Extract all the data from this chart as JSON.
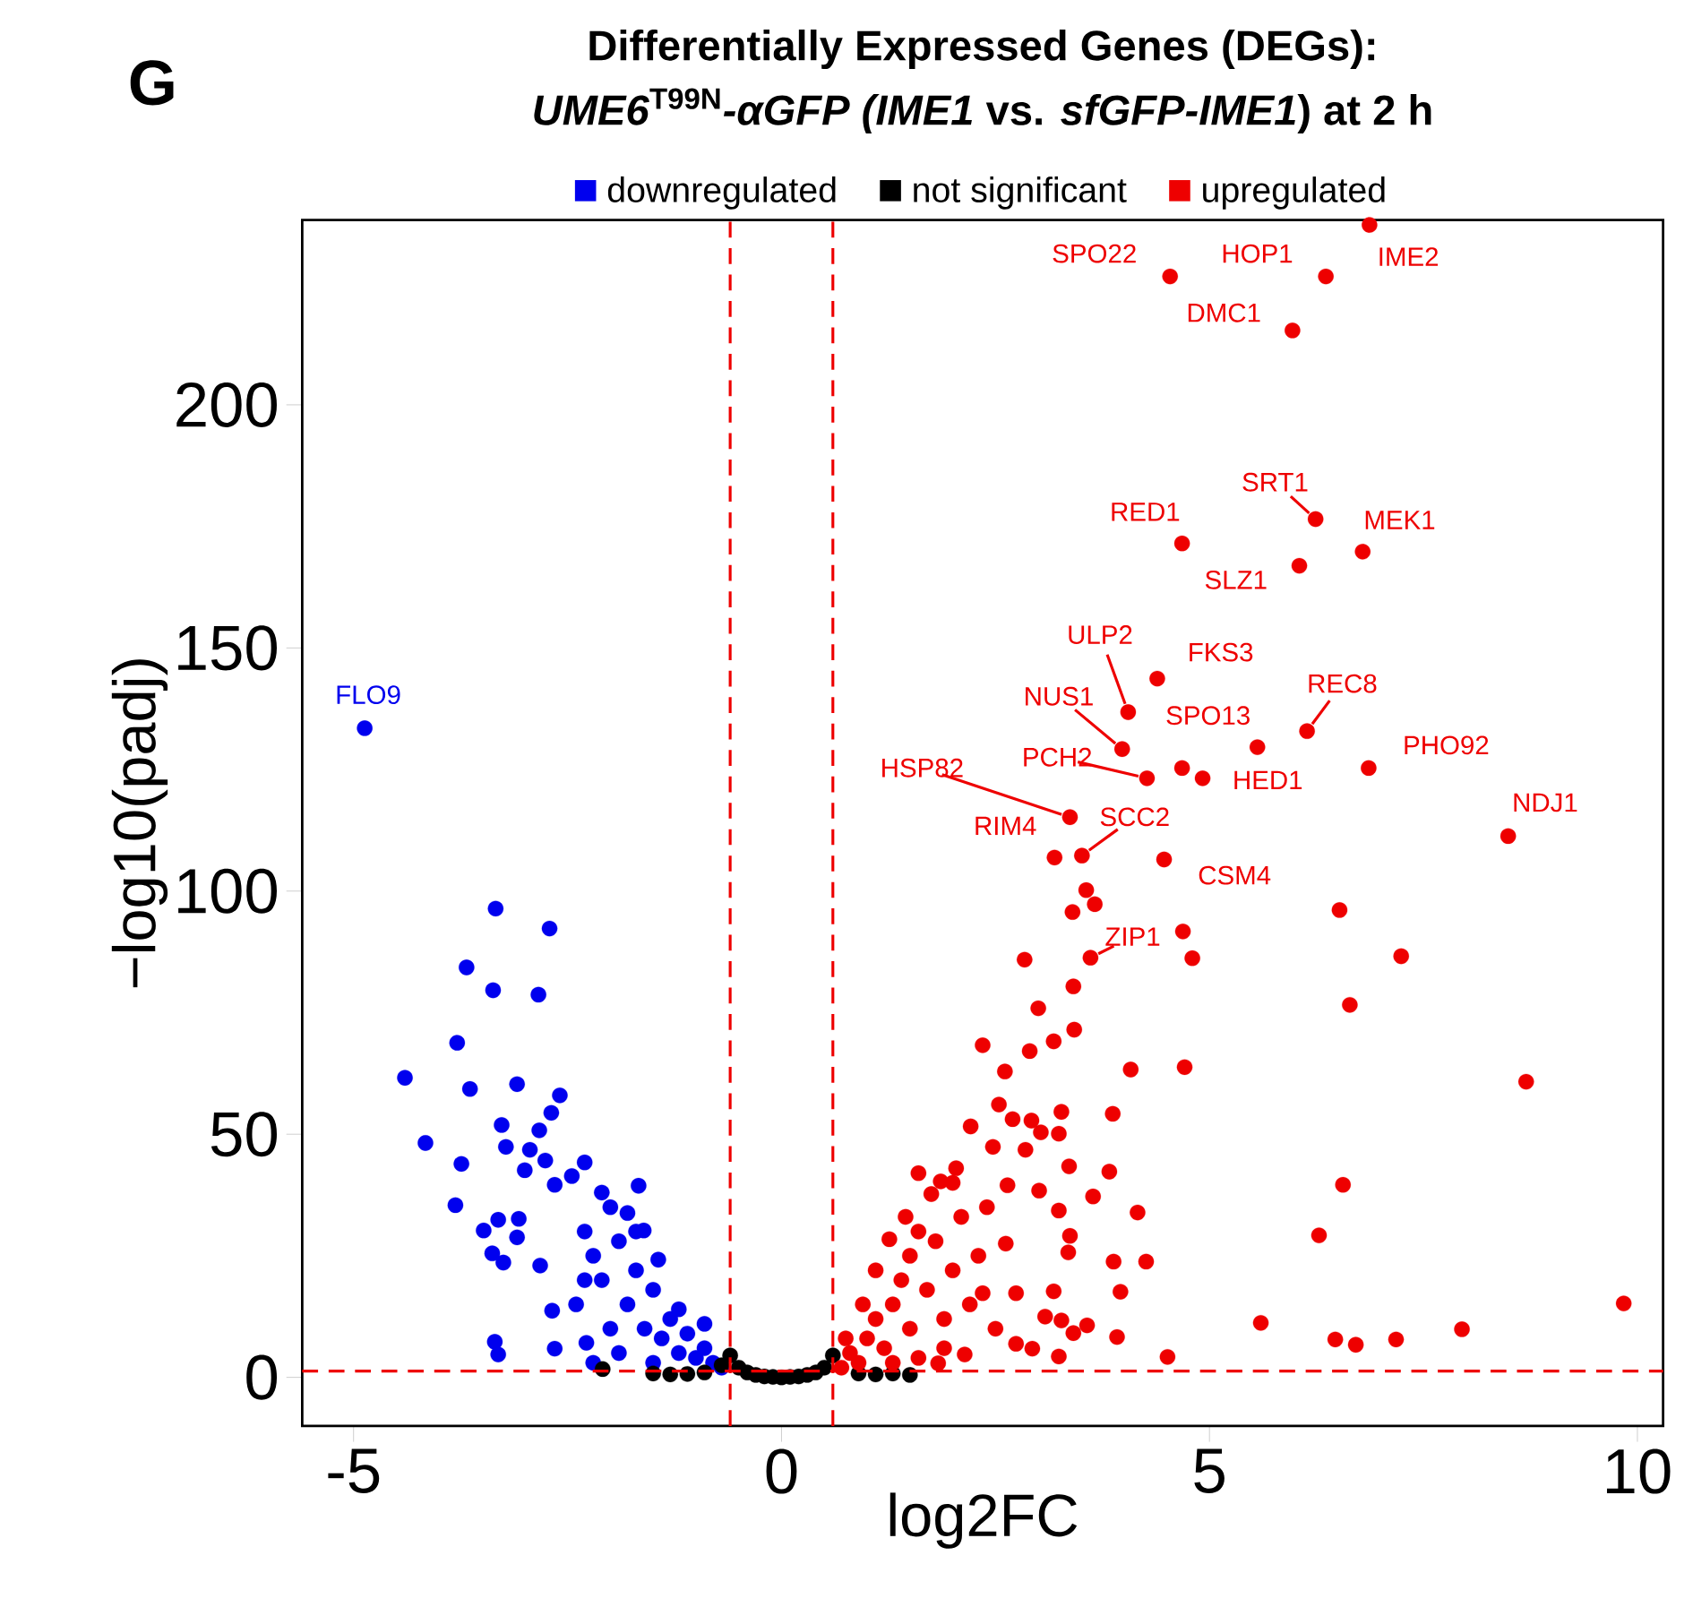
{
  "chart_data": {
    "type": "scatter",
    "title": "Differentially Expressed Genes (DEGs):",
    "subtitle": "*UME6*$^{T99N}$*-αGFP (IME1* vs. *sfGFP-IME1*) at 2 h",
    "xlabel": "log2FC",
    "ylabel": "−log10(padj)",
    "xlim": [
      -5.6,
      10.3
    ],
    "ylim": [
      -10,
      238
    ],
    "xticks": [
      -5,
      0,
      5,
      10
    ],
    "yticks": [
      0,
      50,
      100,
      150,
      200
    ],
    "legend": "top",
    "marker": "circle",
    "series": [
      {
        "name": "downregulated",
        "color": "#0000ee",
        "x": [
          -4.87,
          -3.34,
          -2.71,
          -3.68,
          -3.37,
          -2.84,
          -3.79,
          -4.4,
          -3.64,
          -3.09,
          -2.59,
          -2.69,
          -3.27,
          -2.83,
          -3.22,
          -2.94,
          -4.16,
          -3.74,
          -2.76,
          -3.0,
          -2.3,
          -3.81,
          -2.65,
          -2.45,
          -1.67,
          -3.48,
          -3.31,
          -3.07,
          -3.09,
          -3.38,
          -3.25,
          -2.82,
          -2.68,
          -3.35,
          -3.31,
          -2.65,
          -2.28,
          -1.61,
          -1.44,
          -1.8,
          -2.3,
          -2.2,
          -2.1,
          -2.0,
          -1.9,
          -1.8,
          -1.7,
          -1.6,
          -1.5,
          -1.4,
          -1.3,
          -1.2,
          -1.1,
          -1.0,
          -0.9,
          -0.8,
          -0.7,
          -2.0,
          -1.9,
          -2.2,
          -1.5,
          -2.4,
          -2.3,
          -1.7,
          -2.1,
          -1.2,
          -0.9
        ],
        "values": [
          133.5,
          96.4,
          92.3,
          84.3,
          79.6,
          78.7,
          68.8,
          61.6,
          59.3,
          60.3,
          58.0,
          54.4,
          51.9,
          50.8,
          47.4,
          46.8,
          48.2,
          43.9,
          44.6,
          42.6,
          44.2,
          35.4,
          39.6,
          41.4,
          39.4,
          30.2,
          32.4,
          32.6,
          28.8,
          25.5,
          23.6,
          23.0,
          13.7,
          7.3,
          4.7,
          5.9,
          7.1,
          30.2,
          24.2,
          33.8,
          30,
          25,
          20,
          35,
          28,
          15,
          22,
          10,
          18,
          8,
          12,
          5,
          9,
          4,
          6,
          3,
          2,
          10,
          5,
          3,
          3,
          15,
          20,
          30,
          38,
          14,
          11
        ]
      },
      {
        "name": "not significant",
        "color": "#000000",
        "x": [
          -2.09,
          -1.5,
          -1.3,
          -1.1,
          -0.9,
          -0.7,
          -0.6,
          -0.5,
          -0.4,
          -0.3,
          -0.2,
          -0.1,
          0,
          0.1,
          0.2,
          0.3,
          0.4,
          0.5,
          0.6,
          0.7,
          0.9,
          1.1,
          1.3,
          1.5
        ],
        "values": [
          1.7,
          0.8,
          0.6,
          0.7,
          1.0,
          2.5,
          4.5,
          2.0,
          1.0,
          0.5,
          0.2,
          0.1,
          0,
          0.1,
          0.2,
          0.5,
          1.0,
          2.0,
          4.5,
          null,
          0.8,
          0.6,
          0.8,
          0.5
        ]
      },
      {
        "name": "upregulated",
        "color": "#ee0000",
        "x": [
          6.87,
          4.54,
          6.36,
          5.97,
          6.24,
          4.68,
          6.79,
          6.05,
          4.39,
          4.05,
          3.98,
          5.56,
          6.14,
          4.27,
          4.68,
          4.92,
          6.86,
          8.49,
          3.37,
          3.19,
          3.51,
          4.47,
          3.61,
          3.56,
          3.66,
          3.4,
          6.52,
          4.69,
          4.8,
          7.24,
          2.84,
          3.41,
          6.64,
          3.0,
          3.42,
          3.18,
          2.35,
          2.9,
          2.61,
          4.08,
          4.71,
          8.7,
          2.54,
          3.87,
          3.27,
          3.83,
          6.56,
          4.16,
          6.28,
          3.88,
          4.26,
          3.96,
          9.84,
          5.6,
          7.95,
          6.47,
          6.71,
          7.18,
          3.92,
          4.51,
          3.18,
          3.41,
          3.57,
          2.74,
          2.21,
          2.7,
          2.92,
          3.03,
          3.24,
          2.85,
          2.47,
          2.04,
          1.86,
          3.36,
          2.64,
          3.01,
          3.24,
          3.64,
          1.75,
          1.26,
          3.37,
          3.35,
          2.62,
          2.35,
          2.74,
          3.08,
          3.27,
          2.93,
          3.24,
          1.83,
          2.14,
          0.7,
          0.8,
          0.9,
          1.0,
          1.1,
          1.2,
          1.3,
          1.4,
          1.5,
          1.5,
          1.6,
          1.7,
          1.8,
          1.9,
          2.0,
          2.1,
          2.2,
          2.3,
          1.3,
          1.6,
          1.9,
          2.0,
          1.6,
          1.45,
          1.1,
          0.95,
          0.75,
          2.4,
          2.5
        ],
        "values": [
          237,
          226.4,
          226.4,
          215.3,
          176.5,
          171.5,
          169.8,
          166.9,
          143.7,
          136.8,
          129.2,
          129.6,
          132.9,
          123.2,
          125.3,
          123.2,
          125.3,
          111.3,
          115.2,
          106.9,
          107.3,
          106.5,
          86.3,
          100.2,
          97.3,
          95.7,
          96.1,
          91.7,
          86.2,
          86.6,
          85.9,
          80.4,
          76.6,
          75.9,
          71.5,
          69.1,
          68.3,
          67.1,
          62.9,
          63.3,
          63.8,
          60.8,
          56.1,
          54.2,
          54.6,
          42.3,
          39.6,
          33.9,
          29.2,
          23.8,
          23.8,
          17.6,
          15.2,
          11.2,
          9.9,
          7.8,
          6.7,
          7.8,
          8.3,
          4.2,
          17.7,
          9.1,
          10.7,
          6.9,
          51.6,
          53.1,
          52.8,
          50.4,
          50.1,
          46.8,
          47.4,
          43.0,
          40.3,
          43.4,
          39.5,
          38.4,
          34.3,
          37.2,
          37.7,
          28.4,
          29.1,
          25.7,
          27.5,
          17.3,
          17.3,
          12.5,
          11.7,
          5.9,
          4.3,
          2.9,
          4.7,
          2,
          5,
          3,
          8,
          12,
          6,
          15,
          20,
          10,
          25,
          30,
          18,
          28,
          12,
          22,
          33,
          15,
          25,
          3,
          4,
          6,
          40,
          42,
          33,
          22,
          15,
          8,
          35,
          10
        ]
      }
    ],
    "ref_lines": [
      {
        "axis": "x",
        "value": -0.6,
        "color": "#ee0000",
        "line_style": "dashed"
      },
      {
        "axis": "x",
        "value": 0.6,
        "color": "#ee0000",
        "line_style": "dashed"
      },
      {
        "axis": "y",
        "value": 1.3,
        "color": "#ee0000",
        "line_style": "dashed"
      }
    ],
    "annotations": [
      "G",
      {
        "text": "IME2",
        "x": 6.87,
        "y": 237
      },
      {
        "text": "SPO22",
        "x": 4.54,
        "y": 226.4
      },
      {
        "text": "HOP1",
        "x": 6.36,
        "y": 226.4
      },
      {
        "text": "DMC1",
        "x": 5.97,
        "y": 215.3
      },
      {
        "text": "SRT1",
        "x": 6.24,
        "y": 176.5
      },
      {
        "text": "RED1",
        "x": 4.68,
        "y": 171.5
      },
      {
        "text": "MEK1",
        "x": 6.79,
        "y": 169.8
      },
      {
        "text": "SLZ1",
        "x": 6.05,
        "y": 166.9
      },
      {
        "text": "ULP2",
        "x": 4.05,
        "y": 136.8
      },
      {
        "text": "FKS3",
        "x": 4.39,
        "y": 143.7
      },
      {
        "text": "NUS1",
        "x": 3.98,
        "y": 129.2
      },
      {
        "text": "SPO13",
        "x": 5.56,
        "y": 129.6
      },
      {
        "text": "REC8",
        "x": 6.14,
        "y": 132.9
      },
      {
        "text": "PHO92",
        "x": 6.86,
        "y": 125.3
      },
      {
        "text": "PCH2",
        "x": 4.27,
        "y": 123.2
      },
      {
        "text": "HED1",
        "x": 4.92,
        "y": 123.2
      },
      {
        "text": "HSP82",
        "x": 3.37,
        "y": 115.2
      },
      {
        "text": "NDJ1",
        "x": 8.49,
        "y": 111.3
      },
      {
        "text": "SCC2",
        "x": 3.51,
        "y": 107.3
      },
      {
        "text": "RIM4",
        "x": 3.19,
        "y": 106.9
      },
      {
        "text": "CSM4",
        "x": 4.47,
        "y": 106.5
      },
      {
        "text": "ZIP1",
        "x": 3.61,
        "y": 86.3
      },
      {
        "text": "FLO9",
        "x": -4.87,
        "y": 133.5
      }
    ]
  }
}
